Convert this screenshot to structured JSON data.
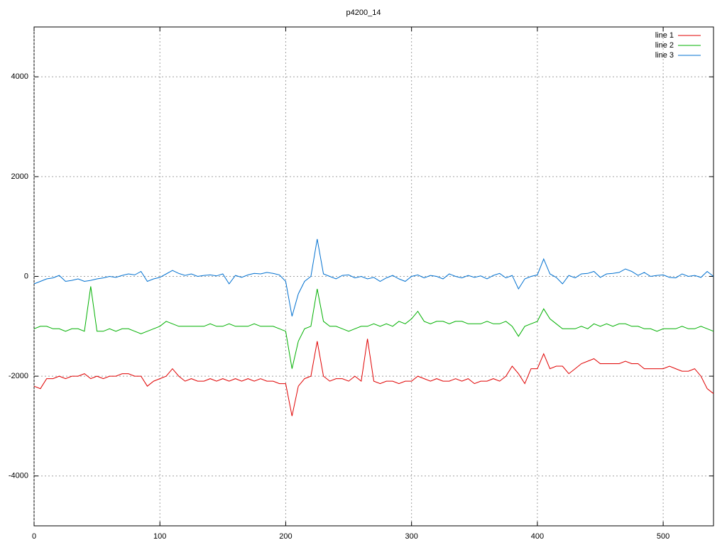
{
  "chart_data": {
    "type": "line",
    "title": "p4200_14",
    "x": [
      0,
      5,
      10,
      15,
      20,
      25,
      30,
      35,
      40,
      45,
      50,
      55,
      60,
      65,
      70,
      75,
      80,
      85,
      90,
      95,
      100,
      105,
      110,
      115,
      120,
      125,
      130,
      135,
      140,
      145,
      150,
      155,
      160,
      165,
      170,
      175,
      180,
      185,
      190,
      195,
      200,
      205,
      210,
      215,
      220,
      225,
      230,
      235,
      240,
      245,
      250,
      255,
      260,
      265,
      270,
      275,
      280,
      285,
      290,
      295,
      300,
      305,
      310,
      315,
      320,
      325,
      330,
      335,
      340,
      345,
      350,
      355,
      360,
      365,
      370,
      375,
      380,
      385,
      390,
      395,
      400,
      405,
      410,
      415,
      420,
      425,
      430,
      435,
      440,
      445,
      450,
      455,
      460,
      465,
      470,
      475,
      480,
      485,
      490,
      495,
      500,
      505,
      510,
      515,
      520,
      525,
      530,
      535,
      540
    ],
    "series": [
      {
        "name": "line 1",
        "color": "#e00000",
        "values": [
          -2200,
          -2250,
          -2050,
          -2050,
          -2000,
          -2050,
          -2000,
          -2000,
          -1950,
          -2050,
          -2000,
          -2050,
          -2000,
          -2000,
          -1950,
          -1950,
          -2000,
          -2000,
          -2200,
          -2100,
          -2050,
          -2000,
          -1850,
          -2000,
          -2100,
          -2050,
          -2100,
          -2100,
          -2050,
          -2100,
          -2050,
          -2100,
          -2050,
          -2100,
          -2050,
          -2100,
          -2050,
          -2100,
          -2100,
          -2150,
          -2150,
          -2800,
          -2200,
          -2050,
          -2000,
          -1300,
          -2000,
          -2100,
          -2050,
          -2050,
          -2100,
          -2000,
          -2100,
          -1250,
          -2100,
          -2150,
          -2100,
          -2100,
          -2150,
          -2100,
          -2100,
          -2000,
          -2050,
          -2100,
          -2050,
          -2100,
          -2100,
          -2050,
          -2100,
          -2050,
          -2150,
          -2100,
          -2100,
          -2050,
          -2100,
          -2000,
          -1800,
          -1950,
          -2150,
          -1850,
          -1850,
          -1550,
          -1850,
          -1800,
          -1800,
          -1950,
          -1850,
          -1750,
          -1700,
          -1650,
          -1750,
          -1750,
          -1750,
          -1750,
          -1700,
          -1750,
          -1750,
          -1850,
          -1850,
          -1850,
          -1850,
          -1800,
          -1850,
          -1900,
          -1900,
          -1850,
          -2000,
          -2250,
          -2350
        ]
      },
      {
        "name": "line 2",
        "color": "#00b000",
        "values": [
          -1050,
          -1000,
          -1000,
          -1050,
          -1050,
          -1100,
          -1050,
          -1050,
          -1100,
          -200,
          -1100,
          -1100,
          -1050,
          -1100,
          -1050,
          -1050,
          -1100,
          -1150,
          -1100,
          -1050,
          -1000,
          -900,
          -950,
          -1000,
          -1000,
          -1000,
          -1000,
          -1000,
          -950,
          -1000,
          -1000,
          -950,
          -1000,
          -1000,
          -1000,
          -950,
          -1000,
          -1000,
          -1000,
          -1050,
          -1100,
          -1850,
          -1300,
          -1050,
          -1000,
          -250,
          -900,
          -1000,
          -1000,
          -1050,
          -1100,
          -1050,
          -1000,
          -1000,
          -950,
          -1000,
          -950,
          -1000,
          -900,
          -950,
          -850,
          -700,
          -900,
          -950,
          -900,
          -900,
          -950,
          -900,
          -900,
          -950,
          -950,
          -950,
          -900,
          -950,
          -950,
          -900,
          -1000,
          -1200,
          -1000,
          -950,
          -900,
          -650,
          -850,
          -950,
          -1050,
          -1050,
          -1050,
          -1000,
          -1050,
          -950,
          -1000,
          -950,
          -1000,
          -950,
          -950,
          -1000,
          -1000,
          -1050,
          -1050,
          -1100,
          -1050,
          -1050,
          -1050,
          -1000,
          -1050,
          -1050,
          -1000,
          -1050,
          -1100
        ]
      },
      {
        "name": "line 3",
        "color": "#0070d0",
        "values": [
          -150,
          -100,
          -50,
          -30,
          20,
          -100,
          -80,
          -50,
          -100,
          -80,
          -50,
          -30,
          0,
          -20,
          20,
          50,
          30,
          100,
          -100,
          -50,
          -20,
          50,
          120,
          60,
          20,
          50,
          0,
          20,
          30,
          10,
          50,
          -150,
          20,
          -20,
          30,
          60,
          50,
          80,
          60,
          30,
          -100,
          -800,
          -350,
          -100,
          0,
          750,
          50,
          0,
          -50,
          20,
          30,
          -30,
          0,
          -50,
          -20,
          -100,
          -30,
          20,
          -50,
          -100,
          0,
          30,
          -30,
          20,
          0,
          -50,
          50,
          0,
          -30,
          20,
          -20,
          10,
          -50,
          20,
          60,
          -30,
          20,
          -250,
          -50,
          0,
          30,
          350,
          50,
          -20,
          -150,
          20,
          -30,
          50,
          60,
          100,
          -20,
          50,
          60,
          80,
          150,
          100,
          20,
          80,
          0,
          20,
          30,
          -20,
          -30,
          50,
          0,
          20,
          -20,
          100,
          0
        ]
      }
    ],
    "xlim": [
      0,
      540
    ],
    "ylim": [
      -5000,
      5000
    ],
    "xticks": [
      0,
      100,
      200,
      300,
      400,
      500
    ],
    "yticks": [
      -4000,
      -2000,
      0,
      2000,
      4000
    ],
    "grid": true,
    "legend": "top-right"
  }
}
